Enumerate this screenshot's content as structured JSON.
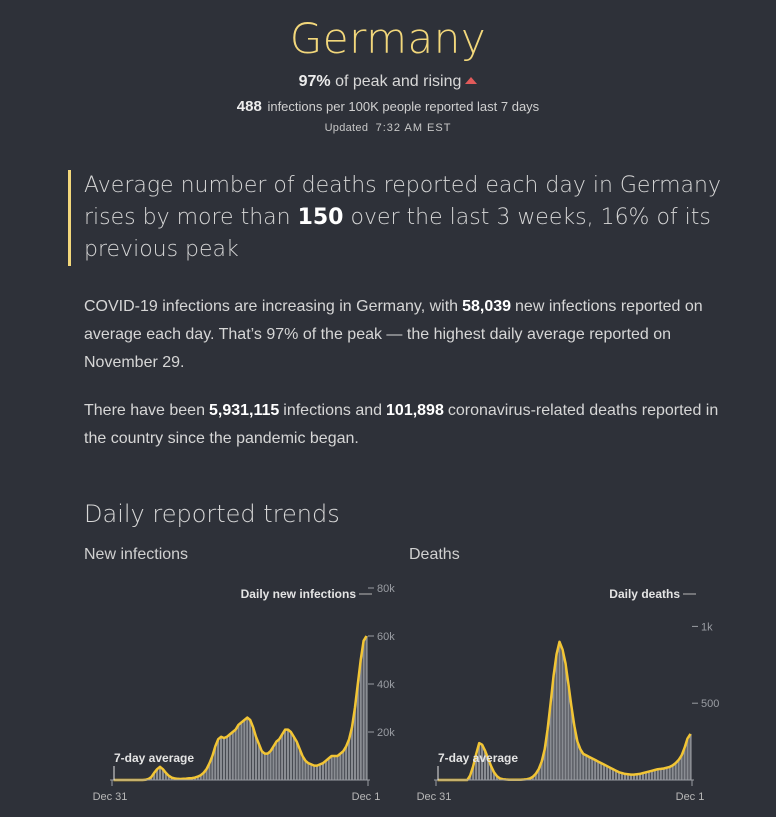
{
  "header": {
    "title": "Germany",
    "peak_pct": "97%",
    "peak_text": "of peak and rising",
    "infections_rate": "488",
    "infections_rate_text": "infections per 100K people reported last 7 days",
    "updated_label": "Updated",
    "updated_time": "7:32 AM EST"
  },
  "callout": {
    "before": "Average number of deaths reported each day in Germany rises by more than",
    "highlight": "150",
    "after": "over the last 3 weeks, 16% of its previous peak"
  },
  "para1": {
    "t1": "COVID-19 infections are increasing in Germany, with",
    "v1": "58,039",
    "t2": "new infections reported on average each day. That’s 97% of the peak — the highest daily average reported on November 29."
  },
  "para2": {
    "t1": "There have been",
    "v1": "5,931,115",
    "t2": "infections and",
    "v2": "101,898",
    "t3": "coronavirus-related deaths reported in the country since the pandemic began."
  },
  "section_title": "Daily reported trends",
  "colors": {
    "accent": "#f2d77b",
    "bars": "#8a8d93",
    "line": "#f2c535",
    "arrow": "#e15a5a"
  },
  "chart_data": [
    {
      "type": "bar",
      "title": "New infections",
      "x_start": "Dec 31",
      "x_end": "Dec 1",
      "ylim": [
        0,
        80000
      ],
      "yticks": [
        20000,
        40000,
        60000,
        80000
      ],
      "ytick_labels": [
        "20k",
        "40k",
        "60k",
        "80k"
      ],
      "bar_label": "Daily new infections",
      "line_label": "7-day average",
      "series": [
        {
          "name": "Daily new infections",
          "values": [
            0,
            0,
            0,
            0,
            0,
            0,
            0,
            0,
            0,
            0,
            0,
            100,
            400,
            1200,
            3000,
            4500,
            5500,
            4500,
            3000,
            1800,
            1000,
            700,
            500,
            400,
            500,
            600,
            700,
            800,
            1000,
            1400,
            2000,
            3000,
            4500,
            7000,
            10000,
            14000,
            17000,
            18000,
            17500,
            18000,
            19000,
            20000,
            21000,
            23000,
            24000,
            25000,
            26000,
            25000,
            22000,
            18000,
            15000,
            12000,
            11000,
            11000,
            12000,
            14000,
            16000,
            17000,
            19000,
            21000,
            21000,
            20000,
            18000,
            16000,
            13000,
            10000,
            8000,
            7000,
            6500,
            6000,
            6000,
            6500,
            7000,
            8000,
            9000,
            10000,
            10000,
            10000,
            11000,
            12000,
            14000,
            17000,
            22000,
            30000,
            40000,
            50000,
            58000,
            60000
          ]
        },
        {
          "name": "7-day average",
          "values": [
            0,
            0,
            0,
            0,
            0,
            0,
            0,
            0,
            0,
            0,
            0,
            100,
            400,
            1200,
            3000,
            4500,
            5500,
            4500,
            3000,
            1800,
            1000,
            700,
            500,
            400,
            500,
            600,
            700,
            800,
            1000,
            1400,
            2000,
            3000,
            4500,
            7000,
            10000,
            14000,
            17000,
            18000,
            17500,
            18000,
            19000,
            20000,
            21000,
            23000,
            24000,
            25000,
            26000,
            25000,
            22000,
            18000,
            15000,
            12000,
            11000,
            11000,
            12000,
            14000,
            16000,
            17000,
            19000,
            21000,
            21000,
            20000,
            18000,
            16000,
            13000,
            10000,
            8000,
            7000,
            6500,
            6000,
            6000,
            6500,
            7000,
            8000,
            9000,
            10000,
            10000,
            10000,
            11000,
            12000,
            14000,
            17000,
            22000,
            30000,
            40000,
            50000,
            58000,
            60000
          ]
        }
      ]
    },
    {
      "type": "bar",
      "title": "Deaths",
      "x_start": "Dec 31",
      "x_end": "Dec 1",
      "ylim": [
        0,
        1250
      ],
      "yticks": [
        500,
        1000
      ],
      "ytick_labels": [
        "500",
        "1k"
      ],
      "bar_label": "Daily deaths",
      "line_label": "7-day average",
      "series": [
        {
          "name": "Daily deaths",
          "values": [
            0,
            0,
            0,
            0,
            0,
            0,
            0,
            0,
            0,
            0,
            0,
            30,
            90,
            170,
            240,
            230,
            190,
            140,
            90,
            50,
            25,
            10,
            5,
            3,
            2,
            2,
            2,
            2,
            2,
            3,
            5,
            10,
            20,
            40,
            70,
            120,
            200,
            330,
            500,
            680,
            820,
            900,
            850,
            760,
            620,
            480,
            350,
            250,
            200,
            170,
            160,
            150,
            140,
            130,
            120,
            110,
            100,
            90,
            80,
            70,
            60,
            50,
            45,
            40,
            38,
            35,
            35,
            38,
            40,
            45,
            50,
            55,
            60,
            65,
            70,
            72,
            75,
            80,
            85,
            95,
            110,
            130,
            160,
            210,
            270,
            300
          ]
        },
        {
          "name": "7-day average",
          "values": [
            0,
            0,
            0,
            0,
            0,
            0,
            0,
            0,
            0,
            0,
            0,
            30,
            90,
            170,
            240,
            230,
            190,
            140,
            90,
            50,
            25,
            10,
            5,
            3,
            2,
            2,
            2,
            2,
            2,
            3,
            5,
            10,
            20,
            40,
            70,
            120,
            200,
            330,
            500,
            680,
            820,
            900,
            850,
            760,
            620,
            480,
            350,
            250,
            200,
            170,
            160,
            150,
            140,
            130,
            120,
            110,
            100,
            90,
            80,
            70,
            60,
            50,
            45,
            40,
            38,
            35,
            35,
            38,
            40,
            45,
            50,
            55,
            60,
            65,
            70,
            72,
            75,
            80,
            85,
            95,
            110,
            130,
            160,
            210,
            270,
            300
          ]
        }
      ]
    }
  ]
}
